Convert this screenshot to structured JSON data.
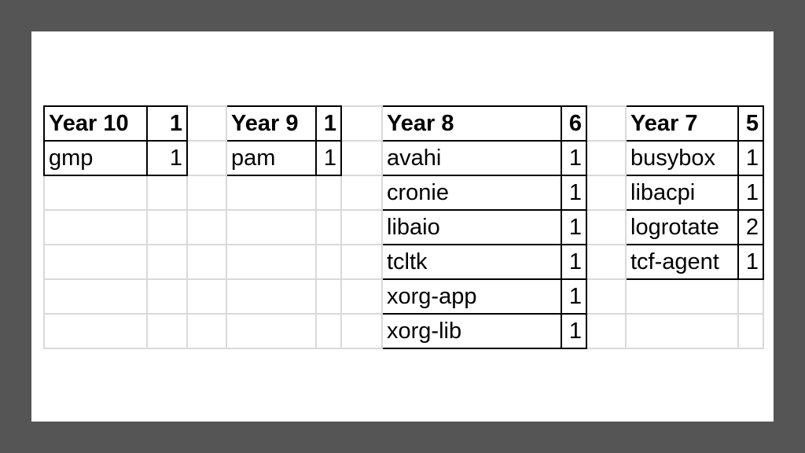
{
  "groups": [
    {
      "header": "Year 10",
      "total": "1",
      "rows": [
        {
          "name": "gmp",
          "count": "1"
        }
      ]
    },
    {
      "header": "Year 9",
      "total": "1",
      "rows": [
        {
          "name": "pam",
          "count": "1"
        }
      ]
    },
    {
      "header": "Year 8",
      "total": "6",
      "rows": [
        {
          "name": "avahi",
          "count": "1"
        },
        {
          "name": "cronie",
          "count": "1"
        },
        {
          "name": "libaio",
          "count": "1"
        },
        {
          "name": "tcltk",
          "count": "1"
        },
        {
          "name": "xorg-app",
          "count": "1"
        },
        {
          "name": "xorg-lib",
          "count": "1"
        }
      ]
    },
    {
      "header": "Year 7",
      "total": "5",
      "rows": [
        {
          "name": "busybox",
          "count": "1"
        },
        {
          "name": "libacpi",
          "count": "1"
        },
        {
          "name": "logrotate",
          "count": "2"
        },
        {
          "name": "tcf-agent",
          "count": "1"
        }
      ]
    }
  ]
}
